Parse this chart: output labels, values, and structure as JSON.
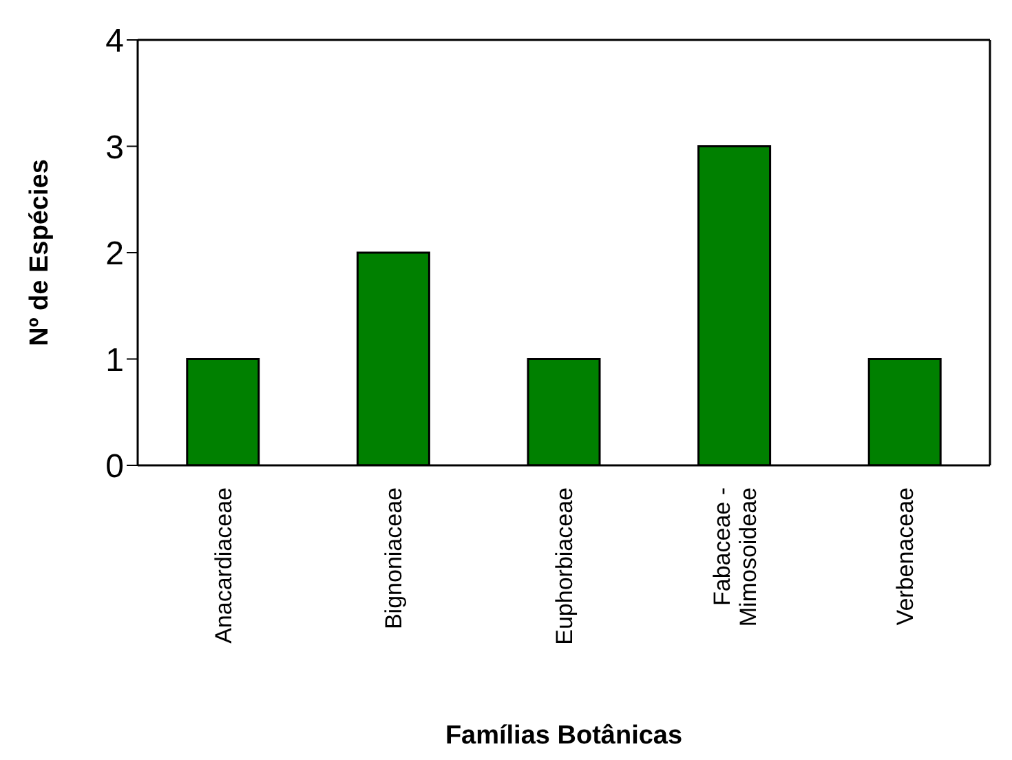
{
  "chart_data": {
    "type": "bar",
    "xlabel": "Famílias Botânicas",
    "ylabel": "Nº de Espécies",
    "categories": [
      "Anacardiaceae",
      "Bignoniaceae",
      "Euphorbiaceae",
      "Fabaceae - Mimosoideae",
      "Verbenaceae"
    ],
    "values": [
      1,
      2,
      1,
      3,
      1
    ],
    "color": "#008000",
    "ylim": [
      0,
      4
    ],
    "yticks": [
      0,
      1,
      2,
      3,
      4
    ],
    "grid": false,
    "legend": false
  }
}
